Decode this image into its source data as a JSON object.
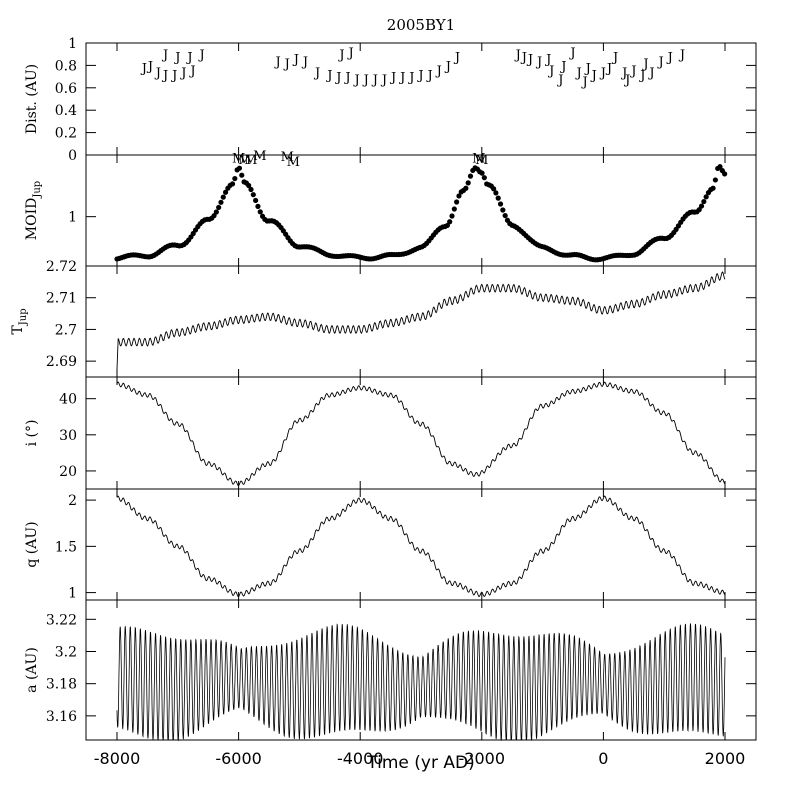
{
  "chart_data": {
    "type": "multi-panel-line",
    "title": "2005BY1",
    "xlabel": "Time (yr AD)",
    "xlim": [
      -8000,
      2000
    ],
    "x_ticks": [
      -8000,
      -6000,
      -4000,
      -2000,
      0,
      2000
    ],
    "x_tick_labels": [
      "-8000",
      "-6000",
      "-4000",
      "-2000",
      "0",
      "2000"
    ],
    "panels": [
      {
        "id": "dist",
        "ylabel": "Dist. (AU)",
        "ylim": [
          0,
          1
        ],
        "y_ticks": [
          0,
          0.2,
          0.4,
          0.6,
          0.8,
          1
        ],
        "y_tick_labels": [
          "0",
          "0.2",
          "0.4",
          "0.6",
          "0.8",
          "1"
        ],
        "markers": [
          {
            "symbol": "J",
            "points": [
              [
                -7200,
                0.9
              ],
              [
                -7000,
                0.88
              ],
              [
                -6600,
                0.9
              ],
              [
                -7550,
                0.78
              ],
              [
                -7450,
                0.8
              ],
              [
                -7320,
                0.74
              ],
              [
                -7200,
                0.72
              ],
              [
                -7050,
                0.72
              ],
              [
                -6900,
                0.74
              ],
              [
                -6750,
                0.76
              ],
              [
                -6800,
                0.88
              ],
              [
                -5350,
                0.84
              ],
              [
                -5200,
                0.82
              ],
              [
                -5050,
                0.86
              ],
              [
                -4900,
                0.84
              ],
              [
                -4300,
                0.9
              ],
              [
                -4150,
                0.92
              ],
              [
                -4700,
                0.74
              ],
              [
                -4500,
                0.72
              ],
              [
                -4350,
                0.7
              ],
              [
                -4200,
                0.7
              ],
              [
                -4050,
                0.68
              ],
              [
                -3900,
                0.68
              ],
              [
                -3750,
                0.68
              ],
              [
                -3600,
                0.68
              ],
              [
                -3450,
                0.7
              ],
              [
                -3300,
                0.7
              ],
              [
                -3150,
                0.7
              ],
              [
                -3000,
                0.72
              ],
              [
                -2850,
                0.72
              ],
              [
                -2700,
                0.76
              ],
              [
                -2550,
                0.8
              ],
              [
                -2400,
                0.88
              ],
              [
                -1400,
                0.9
              ],
              [
                -1200,
                0.86
              ],
              [
                -1050,
                0.84
              ],
              [
                -850,
                0.76
              ],
              [
                -650,
                0.8
              ],
              [
                -500,
                0.92
              ],
              [
                -400,
                0.74
              ],
              [
                -250,
                0.78
              ],
              [
                -150,
                0.72
              ],
              [
                0,
                0.74
              ],
              [
                100,
                0.78
              ],
              [
                200,
                0.88
              ],
              [
                350,
                0.74
              ],
              [
                500,
                0.76
              ],
              [
                650,
                0.72
              ],
              [
                800,
                0.74
              ],
              [
                950,
                0.84
              ],
              [
                1100,
                0.88
              ],
              [
                1300,
                0.9
              ],
              [
                -900,
                0.86
              ],
              [
                -1300,
                0.88
              ],
              [
                -700,
                0.68
              ],
              [
                -300,
                0.66
              ],
              [
                400,
                0.68
              ],
              [
                700,
                0.82
              ]
            ]
          }
        ]
      },
      {
        "id": "moid",
        "ylabel": "MOID",
        "ylabel_sub": "Jup",
        "ylim": [
          0.4,
          1.75
        ],
        "y_ticks": [
          1
        ],
        "y_tick_labels": [
          "1"
        ],
        "markers": [
          {
            "symbol": "M",
            "points": [
              [
                -6000,
                1.72
              ],
              [
                -5900,
                1.7
              ],
              [
                -5800,
                1.7
              ],
              [
                -5650,
                1.75
              ],
              [
                -5200,
                1.74
              ],
              [
                -5100,
                1.68
              ],
              [
                -2050,
                1.72
              ],
              [
                -2000,
                1.7
              ]
            ]
          }
        ],
        "series_keypoints": [
          [
            -8000,
            0.5
          ],
          [
            -7500,
            0.53
          ],
          [
            -7000,
            0.65
          ],
          [
            -6500,
            0.95
          ],
          [
            -6100,
            1.4
          ],
          [
            -6000,
            1.58
          ],
          [
            -5900,
            1.4
          ],
          [
            -5500,
            0.95
          ],
          [
            -5000,
            0.65
          ],
          [
            -4500,
            0.54
          ],
          [
            -4000,
            0.5
          ],
          [
            -3500,
            0.52
          ],
          [
            -3000,
            0.62
          ],
          [
            -2600,
            0.9
          ],
          [
            -2300,
            1.3
          ],
          [
            -2100,
            1.6
          ],
          [
            -2000,
            1.55
          ],
          [
            -1900,
            1.4
          ],
          [
            -1500,
            0.9
          ],
          [
            -1000,
            0.62
          ],
          [
            -500,
            0.52
          ],
          [
            0,
            0.49
          ],
          [
            500,
            0.55
          ],
          [
            1000,
            0.75
          ],
          [
            1500,
            1.05
          ],
          [
            1800,
            1.35
          ],
          [
            1900,
            1.6
          ],
          [
            2000,
            1.5
          ]
        ]
      },
      {
        "id": "tjup",
        "ylabel": "T",
        "ylabel_sub": "Jup",
        "ylim": [
          2.685,
          2.72
        ],
        "y_ticks": [
          2.69,
          2.7,
          2.71,
          2.72
        ],
        "y_tick_labels": [
          "2.69",
          "2.7",
          "2.71",
          "2.72"
        ],
        "series_keypoints": [
          [
            -8000,
            2.687
          ],
          [
            -7980,
            2.696
          ],
          [
            -7500,
            2.696
          ],
          [
            -7000,
            2.699
          ],
          [
            -6500,
            2.701
          ],
          [
            -6000,
            2.703
          ],
          [
            -5500,
            2.704
          ],
          [
            -5000,
            2.702
          ],
          [
            -4500,
            2.7
          ],
          [
            -4000,
            2.7
          ],
          [
            -3500,
            2.702
          ],
          [
            -3000,
            2.704
          ],
          [
            -2500,
            2.709
          ],
          [
            -2000,
            2.713
          ],
          [
            -1500,
            2.713
          ],
          [
            -1000,
            2.71
          ],
          [
            -500,
            2.709
          ],
          [
            0,
            2.706
          ],
          [
            500,
            2.708
          ],
          [
            1000,
            2.711
          ],
          [
            1500,
            2.713
          ],
          [
            2000,
            2.717
          ]
        ]
      },
      {
        "id": "incl",
        "ylabel": "i (°)",
        "ylim": [
          15,
          46
        ],
        "y_ticks": [
          20,
          30,
          40
        ],
        "y_tick_labels": [
          "20",
          "30",
          "40"
        ],
        "series_keypoints": [
          [
            -8000,
            44
          ],
          [
            -7500,
            41
          ],
          [
            -7000,
            33
          ],
          [
            -6500,
            22
          ],
          [
            -6000,
            16.5
          ],
          [
            -5500,
            22
          ],
          [
            -5000,
            34
          ],
          [
            -4500,
            41
          ],
          [
            -4000,
            43
          ],
          [
            -3500,
            41
          ],
          [
            -3000,
            33
          ],
          [
            -2500,
            22
          ],
          [
            -2100,
            19
          ],
          [
            -1500,
            27
          ],
          [
            -1000,
            38
          ],
          [
            -500,
            42
          ],
          [
            0,
            44
          ],
          [
            500,
            42
          ],
          [
            1000,
            36
          ],
          [
            1500,
            25
          ],
          [
            2000,
            17
          ]
        ]
      },
      {
        "id": "q",
        "ylabel": "q (AU)",
        "ylim": [
          0.92,
          2.12
        ],
        "y_ticks": [
          1,
          1.5,
          2
        ],
        "y_tick_labels": [
          "1",
          "1.5",
          "2"
        ],
        "series_keypoints": [
          [
            -8000,
            2.02
          ],
          [
            -7500,
            1.8
          ],
          [
            -7000,
            1.5
          ],
          [
            -6500,
            1.15
          ],
          [
            -6000,
            0.98
          ],
          [
            -5500,
            1.1
          ],
          [
            -5000,
            1.45
          ],
          [
            -4500,
            1.8
          ],
          [
            -4000,
            2.0
          ],
          [
            -3500,
            1.8
          ],
          [
            -3000,
            1.45
          ],
          [
            -2500,
            1.1
          ],
          [
            -2000,
            0.98
          ],
          [
            -1500,
            1.1
          ],
          [
            -1000,
            1.45
          ],
          [
            -500,
            1.8
          ],
          [
            0,
            2.02
          ],
          [
            500,
            1.8
          ],
          [
            1000,
            1.45
          ],
          [
            1500,
            1.1
          ],
          [
            2000,
            1.0
          ]
        ]
      },
      {
        "id": "a",
        "ylabel": "a (AU)",
        "ylim": [
          3.145,
          3.232
        ],
        "y_ticks": [
          3.16,
          3.18,
          3.2,
          3.22
        ],
        "y_tick_labels": [
          "3.16",
          "3.18",
          "3.2",
          "3.22"
        ],
        "oscillation": {
          "mean": 3.18,
          "amplitude_range": [
            3.155,
            3.222
          ],
          "period_yr": 83
        }
      }
    ]
  }
}
